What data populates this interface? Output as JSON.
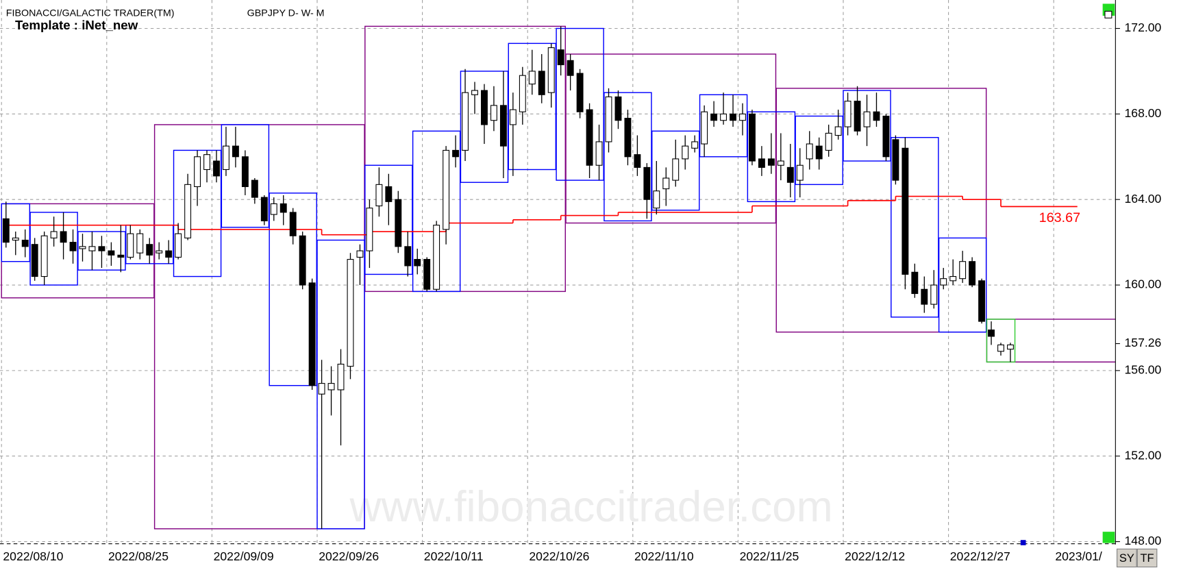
{
  "chart_data": {
    "type": "candlestick",
    "title": "FIBONACCI/GALACTIC TRADER(TM)",
    "subtitle": "GBPJPY D- W- M",
    "template": "Template : iNet_new",
    "watermark": "www.fibonaccitrader.com",
    "buttons": [
      "SY",
      "TF"
    ],
    "x": [
      "2022/08/10",
      "2022/08/11",
      "2022/08/12",
      "2022/08/15",
      "2022/08/16",
      "2022/08/17",
      "2022/08/18",
      "2022/08/19",
      "2022/08/22",
      "2022/08/23",
      "2022/08/24",
      "2022/08/25",
      "2022/08/26",
      "2022/08/29",
      "2022/08/30",
      "2022/08/31",
      "2022/09/01",
      "2022/09/02",
      "2022/09/05",
      "2022/09/06",
      "2022/09/07",
      "2022/09/08",
      "2022/09/09",
      "2022/09/12",
      "2022/09/13",
      "2022/09/14",
      "2022/09/15",
      "2022/09/16",
      "2022/09/19",
      "2022/09/20",
      "2022/09/21",
      "2022/09/22",
      "2022/09/23",
      "2022/09/26",
      "2022/09/27",
      "2022/09/28",
      "2022/09/29",
      "2022/09/30",
      "2022/10/03",
      "2022/10/04",
      "2022/10/05",
      "2022/10/06",
      "2022/10/07",
      "2022/10/10",
      "2022/10/11",
      "2022/10/12",
      "2022/10/13",
      "2022/10/14",
      "2022/10/17",
      "2022/10/18",
      "2022/10/19",
      "2022/10/20",
      "2022/10/21",
      "2022/10/24",
      "2022/10/25",
      "2022/10/26",
      "2022/10/27",
      "2022/10/28",
      "2022/10/31",
      "2022/11/01",
      "2022/11/02",
      "2022/11/03",
      "2022/11/04",
      "2022/11/07",
      "2022/11/08",
      "2022/11/09",
      "2022/11/10",
      "2022/11/11",
      "2022/11/14",
      "2022/11/15",
      "2022/11/16",
      "2022/11/17",
      "2022/11/18",
      "2022/11/21",
      "2022/11/22",
      "2022/11/23",
      "2022/11/24",
      "2022/11/25",
      "2022/11/28",
      "2022/11/29",
      "2022/11/30",
      "2022/12/01",
      "2022/12/02",
      "2022/12/05",
      "2022/12/06",
      "2022/12/07",
      "2022/12/08",
      "2022/12/09",
      "2022/12/12",
      "2022/12/13",
      "2022/12/14",
      "2022/12/15",
      "2022/12/16",
      "2022/12/19",
      "2022/12/20",
      "2022/12/21",
      "2022/12/22",
      "2022/12/23",
      "2022/12/26",
      "2022/12/27",
      "2022/12/28",
      "2022/12/29",
      "2022/12/30",
      "2023/01/02",
      "2023/01/03",
      "2023/01/04"
    ],
    "open": [
      163.1,
      162.1,
      162.1,
      161.9,
      160.4,
      162.2,
      162.5,
      162.0,
      161.7,
      161.6,
      161.8,
      161.6,
      161.4,
      161.3,
      161.5,
      161.9,
      161.5,
      161.6,
      161.3,
      162.2,
      164.6,
      165.4,
      165.8,
      165.4,
      166.5,
      166.0,
      164.9,
      164.1,
      163.3,
      163.8,
      163.4,
      162.3,
      160.1,
      154.9,
      155.1,
      155.1,
      156.2,
      161.3,
      161.6,
      163.7,
      164.6,
      164.0,
      161.8,
      161.2,
      161.2,
      159.8,
      162.6,
      166.3,
      166.3,
      168.9,
      169.1,
      167.7,
      168.4,
      167.5,
      168.1,
      169.4,
      170.0,
      169.0,
      171.0,
      170.5,
      169.9,
      168.2,
      165.6,
      166.7,
      168.8,
      167.8,
      166.1,
      165.5,
      163.6,
      164.5,
      164.9,
      165.9,
      166.4,
      166.6,
      168.0,
      167.7,
      168.0,
      167.7,
      168.0,
      165.9,
      165.9,
      165.6,
      165.5,
      164.9,
      165.9,
      166.5,
      166.3,
      167.0,
      167.4,
      168.6,
      167.4,
      168.1,
      167.9,
      166.8,
      166.4,
      160.6,
      159.8,
      159.1,
      160.0,
      160.2,
      160.3,
      161.1,
      160.2,
      157.9,
      156.9,
      157.0
    ],
    "high": [
      163.9,
      162.5,
      162.6,
      162.2,
      162.5,
      163.2,
      163.4,
      162.6,
      162.4,
      162.5,
      162.3,
      162.0,
      162.8,
      162.8,
      162.6,
      162.2,
      162.0,
      162.1,
      162.9,
      165.2,
      166.3,
      166.3,
      166.3,
      167.4,
      167.4,
      166.3,
      165.0,
      164.2,
      164.1,
      164.2,
      163.6,
      162.5,
      160.3,
      156.5,
      156.2,
      157.0,
      161.5,
      161.9,
      164.0,
      165.5,
      165.2,
      164.4,
      162.5,
      161.7,
      161.3,
      163.0,
      166.5,
      167.0,
      170.1,
      169.5,
      169.4,
      169.3,
      170.0,
      169.0,
      170.2,
      171.0,
      170.8,
      171.3,
      172.1,
      170.8,
      170.1,
      168.5,
      167.5,
      169.2,
      169.1,
      168.2,
      167.0,
      165.7,
      165.8,
      165.5,
      166.8,
      167.0,
      167.0,
      168.4,
      168.6,
      169.0,
      168.9,
      168.5,
      168.2,
      166.5,
      167.1,
      167.1,
      166.6,
      166.4,
      167.2,
      166.9,
      167.5,
      168.2,
      169.0,
      169.3,
      168.9,
      169.0,
      168.0,
      167.0,
      166.9,
      161.0,
      160.4,
      160.7,
      160.8,
      161.2,
      161.6,
      161.3,
      160.3,
      158.3,
      157.3,
      157.3
    ],
    "low": [
      161.75,
      161.4,
      161.3,
      160.2,
      160.0,
      161.8,
      161.2,
      161.0,
      161.1,
      160.7,
      160.8,
      160.9,
      160.6,
      161.2,
      161.2,
      161.0,
      161.2,
      161.0,
      161.2,
      162.1,
      163.7,
      164.8,
      164.8,
      165.1,
      165.5,
      164.2,
      163.8,
      162.8,
      163.0,
      162.8,
      161.9,
      159.8,
      155.1,
      148.6,
      153.9,
      152.5,
      155.6,
      160.0,
      160.8,
      163.2,
      162.8,
      161.5,
      160.4,
      160.5,
      159.7,
      159.7,
      161.9,
      165.5,
      165.8,
      168.0,
      166.6,
      167.2,
      165.0,
      165.1,
      167.5,
      168.9,
      168.5,
      168.3,
      169.8,
      169.1,
      167.8,
      165.0,
      164.9,
      166.2,
      167.3,
      165.6,
      165.1,
      163.1,
      163.3,
      163.7,
      164.6,
      165.4,
      166.2,
      166.0,
      167.4,
      167.5,
      167.4,
      167.0,
      165.6,
      165.1,
      165.2,
      164.9,
      164.1,
      164.1,
      165.4,
      165.4,
      166.0,
      166.8,
      167.0,
      167.0,
      166.5,
      167.4,
      165.8,
      164.7,
      159.8,
      159.4,
      158.7,
      158.9,
      159.8,
      160.0,
      160.1,
      159.9,
      158.2,
      157.2,
      156.7,
      156.4
    ],
    "close": [
      162.0,
      162.2,
      161.8,
      160.4,
      162.3,
      162.5,
      162.0,
      161.6,
      161.8,
      161.8,
      161.6,
      161.4,
      161.3,
      162.4,
      162.4,
      161.4,
      161.6,
      161.3,
      162.4,
      164.7,
      166.0,
      166.1,
      165.1,
      166.5,
      166.0,
      164.6,
      164.1,
      163.0,
      163.8,
      163.4,
      162.3,
      160.0,
      155.3,
      155.4,
      155.4,
      156.3,
      161.2,
      161.6,
      163.6,
      164.7,
      163.9,
      161.8,
      160.9,
      160.9,
      159.8,
      162.8,
      166.3,
      166.0,
      169.0,
      169.1,
      167.5,
      168.4,
      166.5,
      168.2,
      169.8,
      170.0,
      168.9,
      171.1,
      170.3,
      169.8,
      168.1,
      165.6,
      166.7,
      168.8,
      167.7,
      166.0,
      165.5,
      164.0,
      164.4,
      165.0,
      165.9,
      166.5,
      166.7,
      168.1,
      167.7,
      168.0,
      167.7,
      168.0,
      165.8,
      165.5,
      165.6,
      165.8,
      164.8,
      165.6,
      166.6,
      165.9,
      167.1,
      167.4,
      168.6,
      167.2,
      168.1,
      167.7,
      166.0,
      164.9,
      160.5,
      159.6,
      159.1,
      160.0,
      160.3,
      160.4,
      161.1,
      160.0,
      158.3,
      157.6,
      157.2,
      157.2
    ],
    "up_color": "#ffffff",
    "down_color": "#000000",
    "ylim": [
      147.9,
      173.33
    ],
    "yticks": [
      {
        "value": 148,
        "label": "148.00"
      },
      {
        "value": 152,
        "label": "152.00"
      },
      {
        "value": 156,
        "label": "156.00"
      },
      {
        "value": 160,
        "label": "160.00"
      },
      {
        "value": 164,
        "label": "164.00"
      },
      {
        "value": 168,
        "label": "168.00"
      },
      {
        "value": 172,
        "label": "172.00"
      }
    ],
    "xtick_labels": [
      "2022/08/10",
      "2022/08/25",
      "2022/09/09",
      "2022/09/26",
      "2022/10/11",
      "2022/10/26",
      "2022/11/10",
      "2022/11/25",
      "2022/12/12",
      "2022/12/27",
      "2023/01/"
    ],
    "grid": true,
    "last_price": 157.26,
    "weekly_boxes": {
      "color": "#0000ff",
      "boxes": [
        {
          "from": "2022/08/10",
          "to": "2022/08/12",
          "high": 163.8,
          "low": 161.1
        },
        {
          "from": "2022/08/15",
          "to": "2022/08/19",
          "high": 163.4,
          "low": 160.0
        },
        {
          "from": "2022/08/22",
          "to": "2022/08/26",
          "high": 162.5,
          "low": 160.7
        },
        {
          "from": "2022/08/29",
          "to": "2022/09/02",
          "high": 162.8,
          "low": 161.0
        },
        {
          "from": "2022/09/05",
          "to": "2022/09/09",
          "high": 166.3,
          "low": 160.4
        },
        {
          "from": "2022/09/12",
          "to": "2022/09/16",
          "high": 167.5,
          "low": 162.7
        },
        {
          "from": "2022/09/19",
          "to": "2022/09/23",
          "high": 164.3,
          "low": 155.3
        },
        {
          "from": "2022/09/26",
          "to": "2022/09/30",
          "high": 162.1,
          "low": 148.6
        },
        {
          "from": "2022/10/03",
          "to": "2022/10/07",
          "high": 165.6,
          "low": 160.5
        },
        {
          "from": "2022/10/10",
          "to": "2022/10/14",
          "high": 167.2,
          "low": 159.7
        },
        {
          "from": "2022/10/17",
          "to": "2022/10/21",
          "high": 170.0,
          "low": 164.8
        },
        {
          "from": "2022/10/24",
          "to": "2022/10/28",
          "high": 171.3,
          "low": 165.4
        },
        {
          "from": "2022/10/31",
          "to": "2022/11/04",
          "high": 172.0,
          "low": 164.9
        },
        {
          "from": "2022/11/07",
          "to": "2022/11/11",
          "high": 169.0,
          "low": 163.0
        },
        {
          "from": "2022/11/14",
          "to": "2022/11/18",
          "high": 167.2,
          "low": 163.5
        },
        {
          "from": "2022/11/21",
          "to": "2022/11/25",
          "high": 168.9,
          "low": 166.0
        },
        {
          "from": "2022/11/28",
          "to": "2022/12/02",
          "high": 168.1,
          "low": 163.9
        },
        {
          "from": "2022/12/05",
          "to": "2022/12/09",
          "high": 167.9,
          "low": 164.7
        },
        {
          "from": "2022/12/12",
          "to": "2022/12/16",
          "high": 169.1,
          "low": 165.8
        },
        {
          "from": "2022/12/19",
          "to": "2022/12/23",
          "high": 166.9,
          "low": 158.5
        },
        {
          "from": "2022/12/26",
          "to": "2022/12/30",
          "high": 162.2,
          "low": 157.8
        },
        {
          "from": "2023/01/02",
          "to": "2023/01/04",
          "high": 158.4,
          "low": 156.4,
          "color": "#33cc33"
        }
      ]
    },
    "monthly_boxes": {
      "color": "#800080",
      "boxes": [
        {
          "from": "2022/08/10",
          "to": "2022/08/31",
          "high": 163.8,
          "low": 159.4
        },
        {
          "from": "2022/09/01",
          "to": "2022/09/30",
          "high": 167.5,
          "low": 148.6
        },
        {
          "from": "2022/10/03",
          "to": "2022/10/31",
          "high": 172.1,
          "low": 159.7
        },
        {
          "from": "2022/11/01",
          "to": "2022/11/30",
          "high": 170.8,
          "low": 162.9
        },
        {
          "from": "2022/12/01",
          "to": "2022/12/30",
          "high": 169.2,
          "low": 157.8
        },
        {
          "from": "2023/01/02",
          "high": 158.4,
          "low": 156.4
        }
      ]
    },
    "level_line": {
      "color": "#ff0000",
      "x": [
        "2022/08/10",
        "2022/09/05",
        "2022/09/26",
        "2022/10/03",
        "2022/10/13",
        "2022/10/24",
        "2022/10/31",
        "2022/11/08",
        "2022/11/28",
        "2022/12/12",
        "2022/12/19",
        "2022/12/28",
        "2023/01/03"
      ],
      "values": [
        162.8,
        162.6,
        162.35,
        162.5,
        162.9,
        163.05,
        163.25,
        163.4,
        163.7,
        163.95,
        164.15,
        164.0,
        163.67
      ]
    }
  }
}
